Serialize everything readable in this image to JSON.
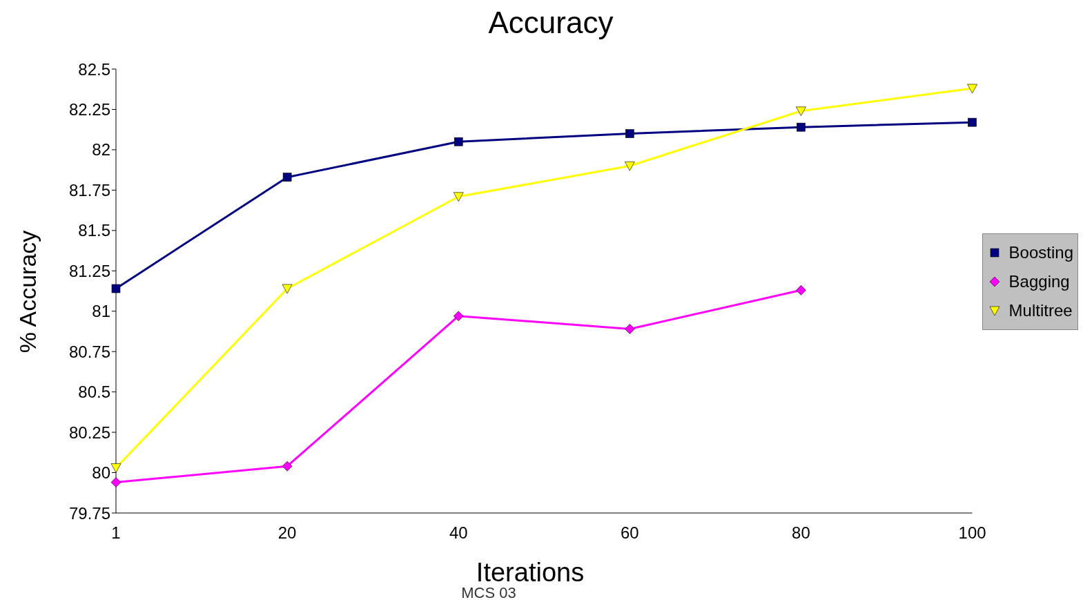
{
  "chart_data": {
    "type": "line",
    "title": "Accuracy",
    "xlabel": "Iterations",
    "ylabel": "% Accuracy",
    "annotations": [
      "MCS 03"
    ],
    "categories": [
      "1",
      "20",
      "40",
      "60",
      "80",
      "100"
    ],
    "series": [
      {
        "name": "Boosting",
        "color": "#000080",
        "marker": "square",
        "values": [
          81.14,
          81.83,
          82.05,
          82.1,
          82.14,
          82.17
        ]
      },
      {
        "name": "Bagging",
        "color": "#ff00ff",
        "marker": "diamond",
        "values": [
          79.94,
          80.04,
          80.97,
          80.89,
          81.13,
          null
        ]
      },
      {
        "name": "Multitree",
        "color": "#ffff00",
        "marker": "triangle",
        "values": [
          80.03,
          81.14,
          81.71,
          81.9,
          82.24,
          82.38
        ]
      }
    ],
    "ylim": [
      79.75,
      82.5
    ],
    "yticks": [
      79.75,
      80,
      80.25,
      80.5,
      80.75,
      81,
      81.25,
      81.5,
      81.75,
      82,
      82.25,
      82.5
    ],
    "grid": false,
    "legend": "right"
  }
}
